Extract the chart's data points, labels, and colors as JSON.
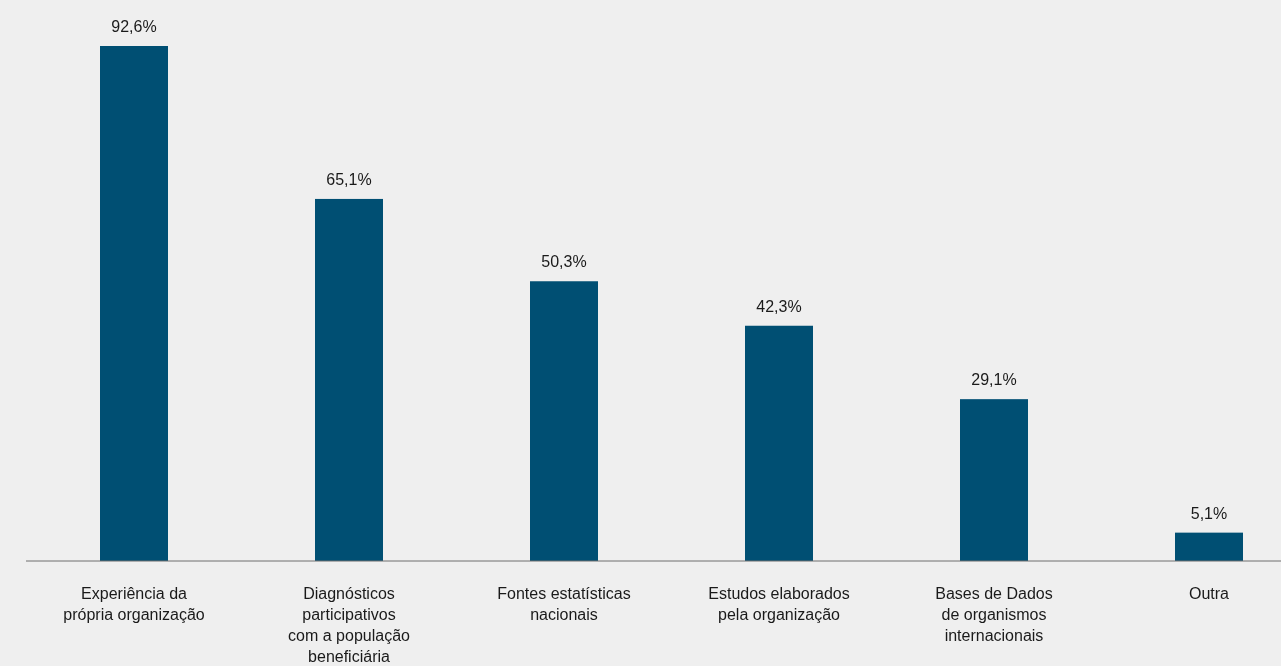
{
  "chart_data": {
    "type": "bar",
    "categories": [
      "Experiência da\nprópria organização",
      "Diagnósticos\nparticipativos\ncom a população\nbeneficiária",
      "Fontes estatísticas\nnacionais",
      "Estudos elaborados\npela organização",
      "Bases de Dados\nde organismos\ninternacionais",
      "Outra"
    ],
    "values": [
      92.6,
      65.1,
      50.3,
      42.3,
      29.1,
      5.1
    ],
    "value_labels": [
      "92,6%",
      "65,1%",
      "50,3%",
      "42,3%",
      "29,1%",
      "5,1%"
    ],
    "color": "#004f73"
  }
}
